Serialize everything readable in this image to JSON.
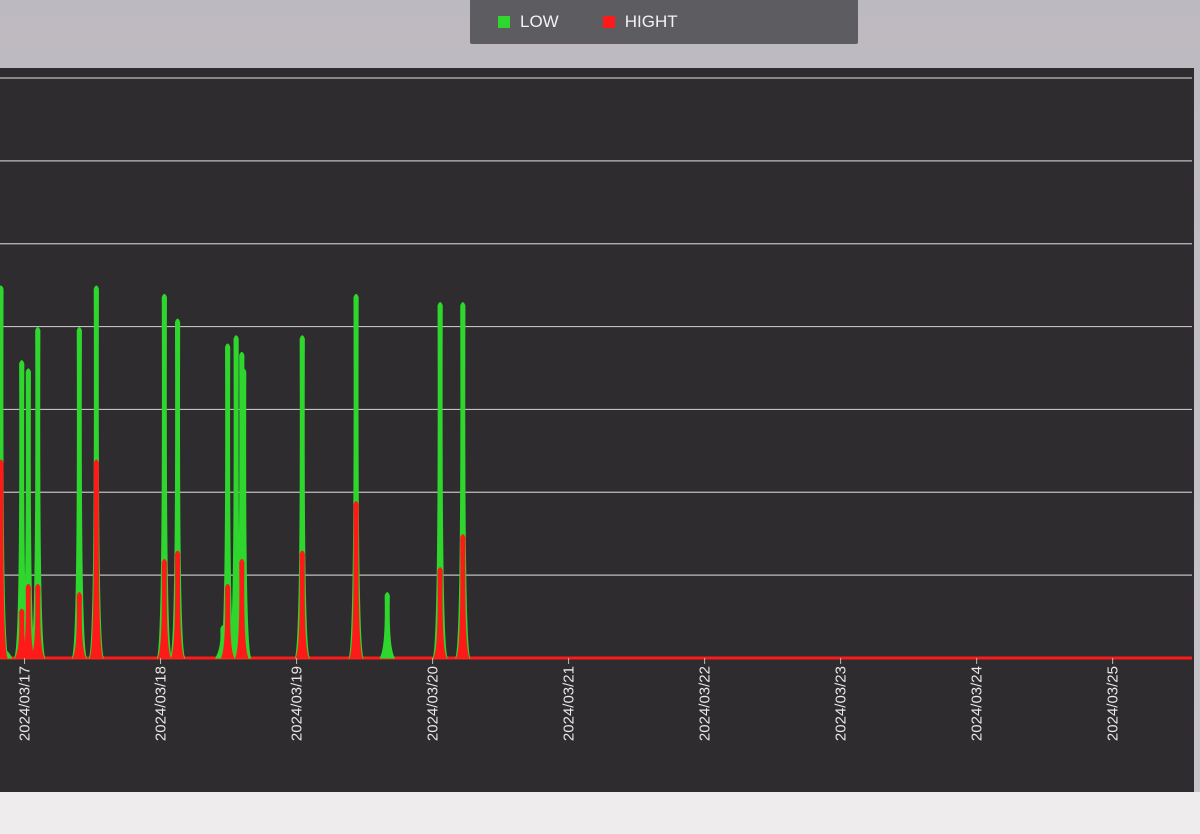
{
  "legend": {
    "items": [
      {
        "label": "LOW",
        "color": "#2ed62e"
      },
      {
        "label": "HIGHT",
        "color": "#ff1a1a"
      }
    ]
  },
  "chart_data": {
    "type": "line",
    "x_ticks": [
      "2024/03/17",
      "2024/03/18",
      "2024/03/19",
      "2024/03/20",
      "2024/03/21",
      "2024/03/22",
      "2024/03/23",
      "2024/03/24",
      "2024/03/25"
    ],
    "xlim": [
      "2024/03/16 19:40",
      "2024/03/25 14:00"
    ],
    "ylim": [
      0,
      7
    ],
    "grid": true,
    "legend_position": "top",
    "series": [
      {
        "name": "LOW",
        "color": "#2ed62e",
        "points": [
          [
            "2024/03/16 19:50",
            4.5
          ],
          [
            "2024/03/16 20:30",
            0.1
          ],
          [
            "2024/03/16 23:30",
            3.6
          ],
          [
            "2024/03/17 00:40",
            3.5
          ],
          [
            "2024/03/17 02:20",
            4.0
          ],
          [
            "2024/03/17 09:40",
            4.0
          ],
          [
            "2024/03/17 12:40",
            4.5
          ],
          [
            "2024/03/18 00:40",
            4.4
          ],
          [
            "2024/03/18 03:00",
            4.1
          ],
          [
            "2024/03/18 11:50",
            3.8
          ],
          [
            "2024/03/18 13:20",
            3.9
          ],
          [
            "2024/03/18 14:20",
            3.7
          ],
          [
            "2024/03/18 14:40",
            3.5
          ],
          [
            "2024/03/18 11:00",
            0.4
          ],
          [
            "2024/03/19 01:00",
            3.9
          ],
          [
            "2024/03/19 10:30",
            4.4
          ],
          [
            "2024/03/19 16:00",
            0.8
          ],
          [
            "2024/03/20 01:20",
            4.3
          ],
          [
            "2024/03/20 05:20",
            4.3
          ]
        ]
      },
      {
        "name": "HIGHT",
        "color": "#ff1a1a",
        "points": [
          [
            "2024/03/16 19:50",
            2.4
          ],
          [
            "2024/03/16 23:30",
            0.6
          ],
          [
            "2024/03/17 00:40",
            0.9
          ],
          [
            "2024/03/17 02:20",
            0.9
          ],
          [
            "2024/03/17 09:40",
            0.8
          ],
          [
            "2024/03/17 12:40",
            2.4
          ],
          [
            "2024/03/18 00:40",
            1.2
          ],
          [
            "2024/03/18 03:00",
            1.3
          ],
          [
            "2024/03/18 11:50",
            0.9
          ],
          [
            "2024/03/18 14:20",
            1.2
          ],
          [
            "2024/03/19 01:00",
            1.3
          ],
          [
            "2024/03/19 10:30",
            1.9
          ],
          [
            "2024/03/20 01:20",
            1.1
          ],
          [
            "2024/03/20 05:20",
            1.5
          ]
        ]
      }
    ]
  }
}
